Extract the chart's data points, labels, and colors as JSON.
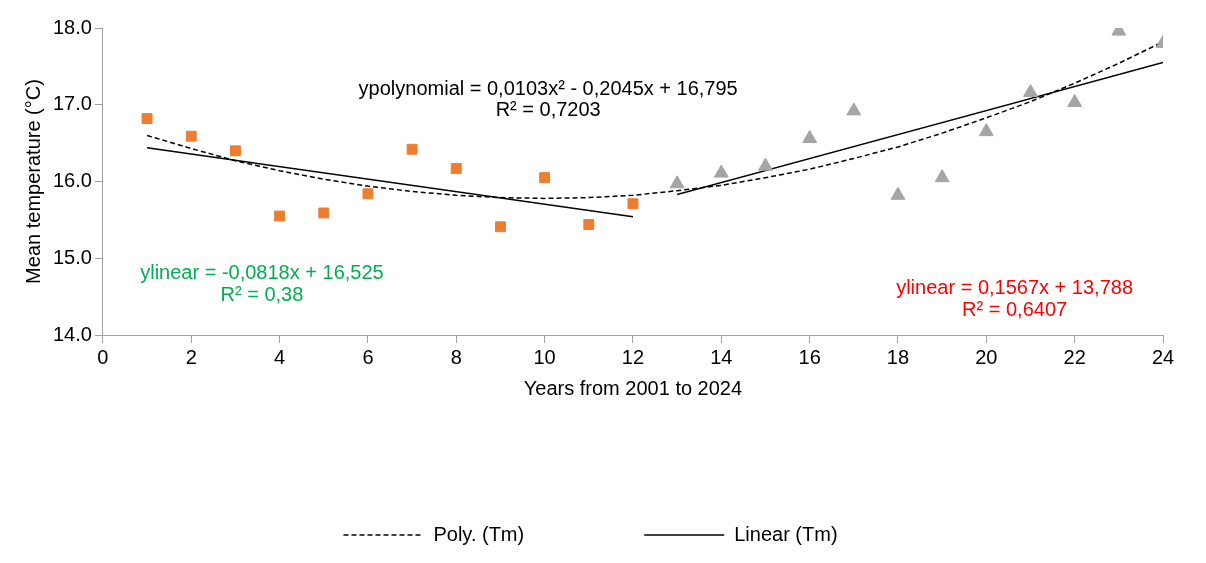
{
  "chart_data": {
    "type": "scatter",
    "xlabel": "Years from 2001 to 2024",
    "ylabel": "Mean temperature (°C)",
    "xlim": [
      0,
      24
    ],
    "xticks": [
      0,
      2,
      4,
      6,
      8,
      10,
      12,
      14,
      16,
      18,
      20,
      22,
      24
    ],
    "ylim": [
      14,
      18
    ],
    "yticks": [
      {
        "value": 14,
        "label": "14.0"
      },
      {
        "value": 15,
        "label": "15.0"
      },
      {
        "value": 16,
        "label": "16.0"
      },
      {
        "value": 17,
        "label": "17.0"
      },
      {
        "value": 18,
        "label": "18.0"
      }
    ],
    "grid": false,
    "legend": "bottom",
    "series": [
      {
        "type": "scatter",
        "marker": "square",
        "color": "#ed7d31",
        "x": [
          1,
          2,
          3,
          4,
          5,
          6,
          7,
          8,
          9,
          10,
          11,
          12
        ],
        "values": [
          16.82,
          16.59,
          16.4,
          15.55,
          15.59,
          15.84,
          16.42,
          16.17,
          15.41,
          16.05,
          15.44,
          15.71
        ]
      },
      {
        "type": "scatter",
        "marker": "triangle",
        "color": "#a5a5a5",
        "x": [
          13,
          14,
          15,
          16,
          17,
          18,
          19,
          20,
          21,
          22,
          23,
          24
        ],
        "values": [
          15.97,
          16.11,
          16.2,
          16.56,
          16.92,
          15.82,
          16.05,
          16.65,
          17.16,
          17.03,
          17.96,
          17.8
        ]
      },
      {
        "type": "line",
        "name": "Poly. (Tm)",
        "marker": "none",
        "line_style": "dashed",
        "color": "#000000",
        "x": [
          1,
          2,
          3,
          4,
          5,
          6,
          7,
          8,
          9,
          10,
          11,
          12,
          13,
          14,
          15,
          16,
          17,
          18,
          19,
          20,
          21,
          22,
          23,
          24
        ],
        "values": [
          16.6,
          16.43,
          16.27,
          16.14,
          16.03,
          15.94,
          15.87,
          15.82,
          15.79,
          15.78,
          15.79,
          15.82,
          15.88,
          15.95,
          16.05,
          16.16,
          16.3,
          16.45,
          16.63,
          16.83,
          17.04,
          17.28,
          17.54,
          17.82
        ]
      },
      {
        "type": "line",
        "name": "Linear (Tm)",
        "marker": "none",
        "line_style": "solid",
        "color": "#000000",
        "x": [
          1,
          12,
          12.5,
          13,
          24
        ],
        "values": [
          16.44,
          15.54,
          null,
          15.83,
          17.55
        ]
      }
    ],
    "annotations": [
      "ypolynomial = 0,0103x² - 0,2045x + 16,795",
      "R² = 0,7203",
      "ylinear = -0,0818x + 16,525",
      "R² = 0,38",
      "ylinear = 0,1567x + 13,788",
      "R² = 0,6407"
    ]
  }
}
